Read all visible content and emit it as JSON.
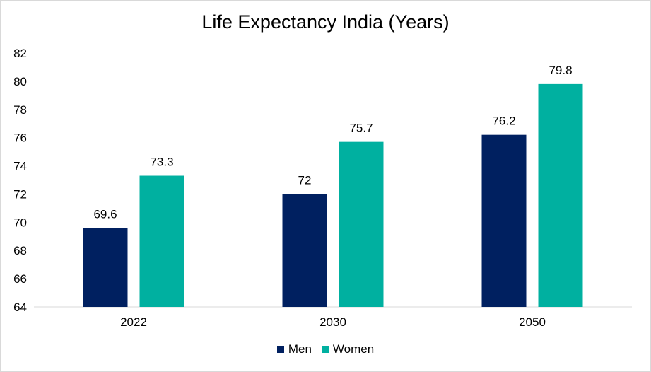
{
  "chart_data": {
    "type": "bar",
    "title": "Life Expectancy India (Years)",
    "categories": [
      "2022",
      "2030",
      "2050"
    ],
    "series": [
      {
        "name": "Men",
        "color": "#002060",
        "values": [
          69.6,
          72,
          76.2
        ],
        "labels": [
          "69.6",
          "72",
          "76.2"
        ]
      },
      {
        "name": "Women",
        "color": "#00B0A0",
        "values": [
          73.3,
          75.7,
          79.8
        ],
        "labels": [
          "73.3",
          "75.7",
          "79.8"
        ]
      }
    ],
    "ylim": [
      64,
      82
    ],
    "yticks": [
      "64",
      "66",
      "68",
      "70",
      "72",
      "74",
      "76",
      "78",
      "80",
      "82"
    ],
    "grid": false,
    "legend_position": "bottom"
  }
}
